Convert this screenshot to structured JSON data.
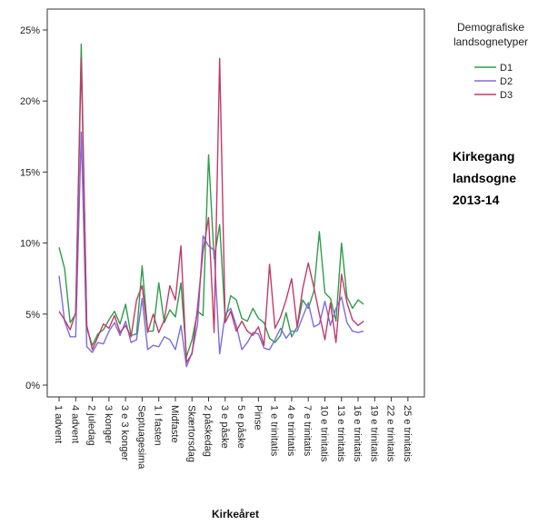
{
  "chart_data": {
    "type": "line",
    "xlabel": "Kirkeåret",
    "ylabel": "",
    "ylim": [
      0,
      25
    ],
    "y_ticks": [
      "0%",
      "5%",
      "10%",
      "15%",
      "20%",
      "25%"
    ],
    "y_tick_values": [
      0,
      5,
      10,
      15,
      20,
      25
    ],
    "x_tick_labels": [
      "1 advent",
      "4 advent",
      "2 juledag",
      "3 konger",
      "3 e 3 konger",
      "Septuagesima",
      "1 i fasten",
      "Midfaste",
      "Skærtorsdag",
      "2 påskedag",
      "3 e påske",
      "5 e påske",
      "Pinse",
      "1 e trinitatis",
      "4 e trinitatis",
      "7 e trinitatis",
      "10 e trinitatis",
      "13 e trinitatis",
      "16 e trinitatis",
      "19 e trinitatis",
      "22 e trinitatis",
      "25 e trinitatis"
    ],
    "x_tick_positions": [
      1,
      4,
      7,
      10,
      13,
      16,
      19,
      22,
      25,
      28,
      31,
      34,
      37,
      40,
      43,
      46,
      49,
      52,
      55,
      58,
      61,
      64
    ],
    "x_range": [
      0.5,
      65.5
    ],
    "grid": false,
    "legend_position": "top-right",
    "legend_title": "Demografiske landsognetyper",
    "annotation_lines": [
      "Kirkegang",
      "landsogne",
      "2013-14"
    ],
    "series": [
      {
        "name": "D1",
        "color": "#2e9d4a",
        "values": [
          9.7,
          8.2,
          4.4,
          5.0,
          24.0,
          4.0,
          2.8,
          3.6,
          3.9,
          4.6,
          5.2,
          4.3,
          5.7,
          3.5,
          3.6,
          8.4,
          3.8,
          3.8,
          7.2,
          4.4,
          5.3,
          4.8,
          7.2,
          2.0,
          3.2,
          5.2,
          4.9,
          16.2,
          8.9,
          11.3,
          4.6,
          6.3,
          6.0,
          4.7,
          4.5,
          5.4,
          4.7,
          4.4,
          3.3,
          3.0,
          3.5,
          5.1,
          3.4,
          4.1,
          6.0,
          5.4,
          6.6,
          10.8,
          6.5,
          6.1,
          4.5,
          10.0,
          6.2,
          5.4,
          6.0,
          5.7
        ]
      },
      {
        "name": "D2",
        "color": "#7b6de0",
        "values": [
          7.7,
          4.5,
          3.4,
          3.4,
          17.8,
          2.7,
          2.3,
          3.0,
          2.9,
          3.8,
          4.4,
          3.5,
          4.5,
          3.0,
          3.2,
          6.1,
          2.5,
          2.8,
          2.7,
          3.4,
          3.2,
          2.5,
          4.2,
          1.3,
          2.3,
          4.3,
          10.5,
          9.8,
          9.5,
          2.2,
          5.0,
          5.4,
          4.2,
          2.5,
          3.0,
          3.7,
          3.6,
          2.6,
          2.5,
          3.2,
          4.0,
          3.3,
          3.8,
          3.8,
          4.8,
          5.8,
          4.1,
          4.3,
          5.9,
          4.2,
          5.4,
          6.2,
          4.4,
          3.8,
          3.7,
          3.8
        ]
      },
      {
        "name": "D3",
        "color": "#c23a6a",
        "values": [
          5.2,
          4.6,
          3.9,
          5.1,
          23.0,
          4.2,
          2.5,
          3.4,
          4.3,
          4.0,
          4.9,
          3.7,
          4.2,
          3.4,
          6.0,
          7.0,
          3.7,
          5.0,
          3.7,
          4.6,
          7.0,
          6.0,
          9.8,
          1.6,
          2.2,
          5.5,
          9.4,
          11.8,
          3.7,
          23.0,
          4.4,
          5.2,
          3.8,
          4.5,
          3.8,
          3.5,
          4.1,
          2.8,
          8.5,
          4.0,
          4.8,
          6.0,
          7.5,
          4.1,
          6.8,
          8.6,
          6.9,
          5.0,
          3.2,
          5.8,
          3.0,
          7.8,
          5.8,
          4.6,
          4.2,
          4.5
        ]
      }
    ]
  }
}
